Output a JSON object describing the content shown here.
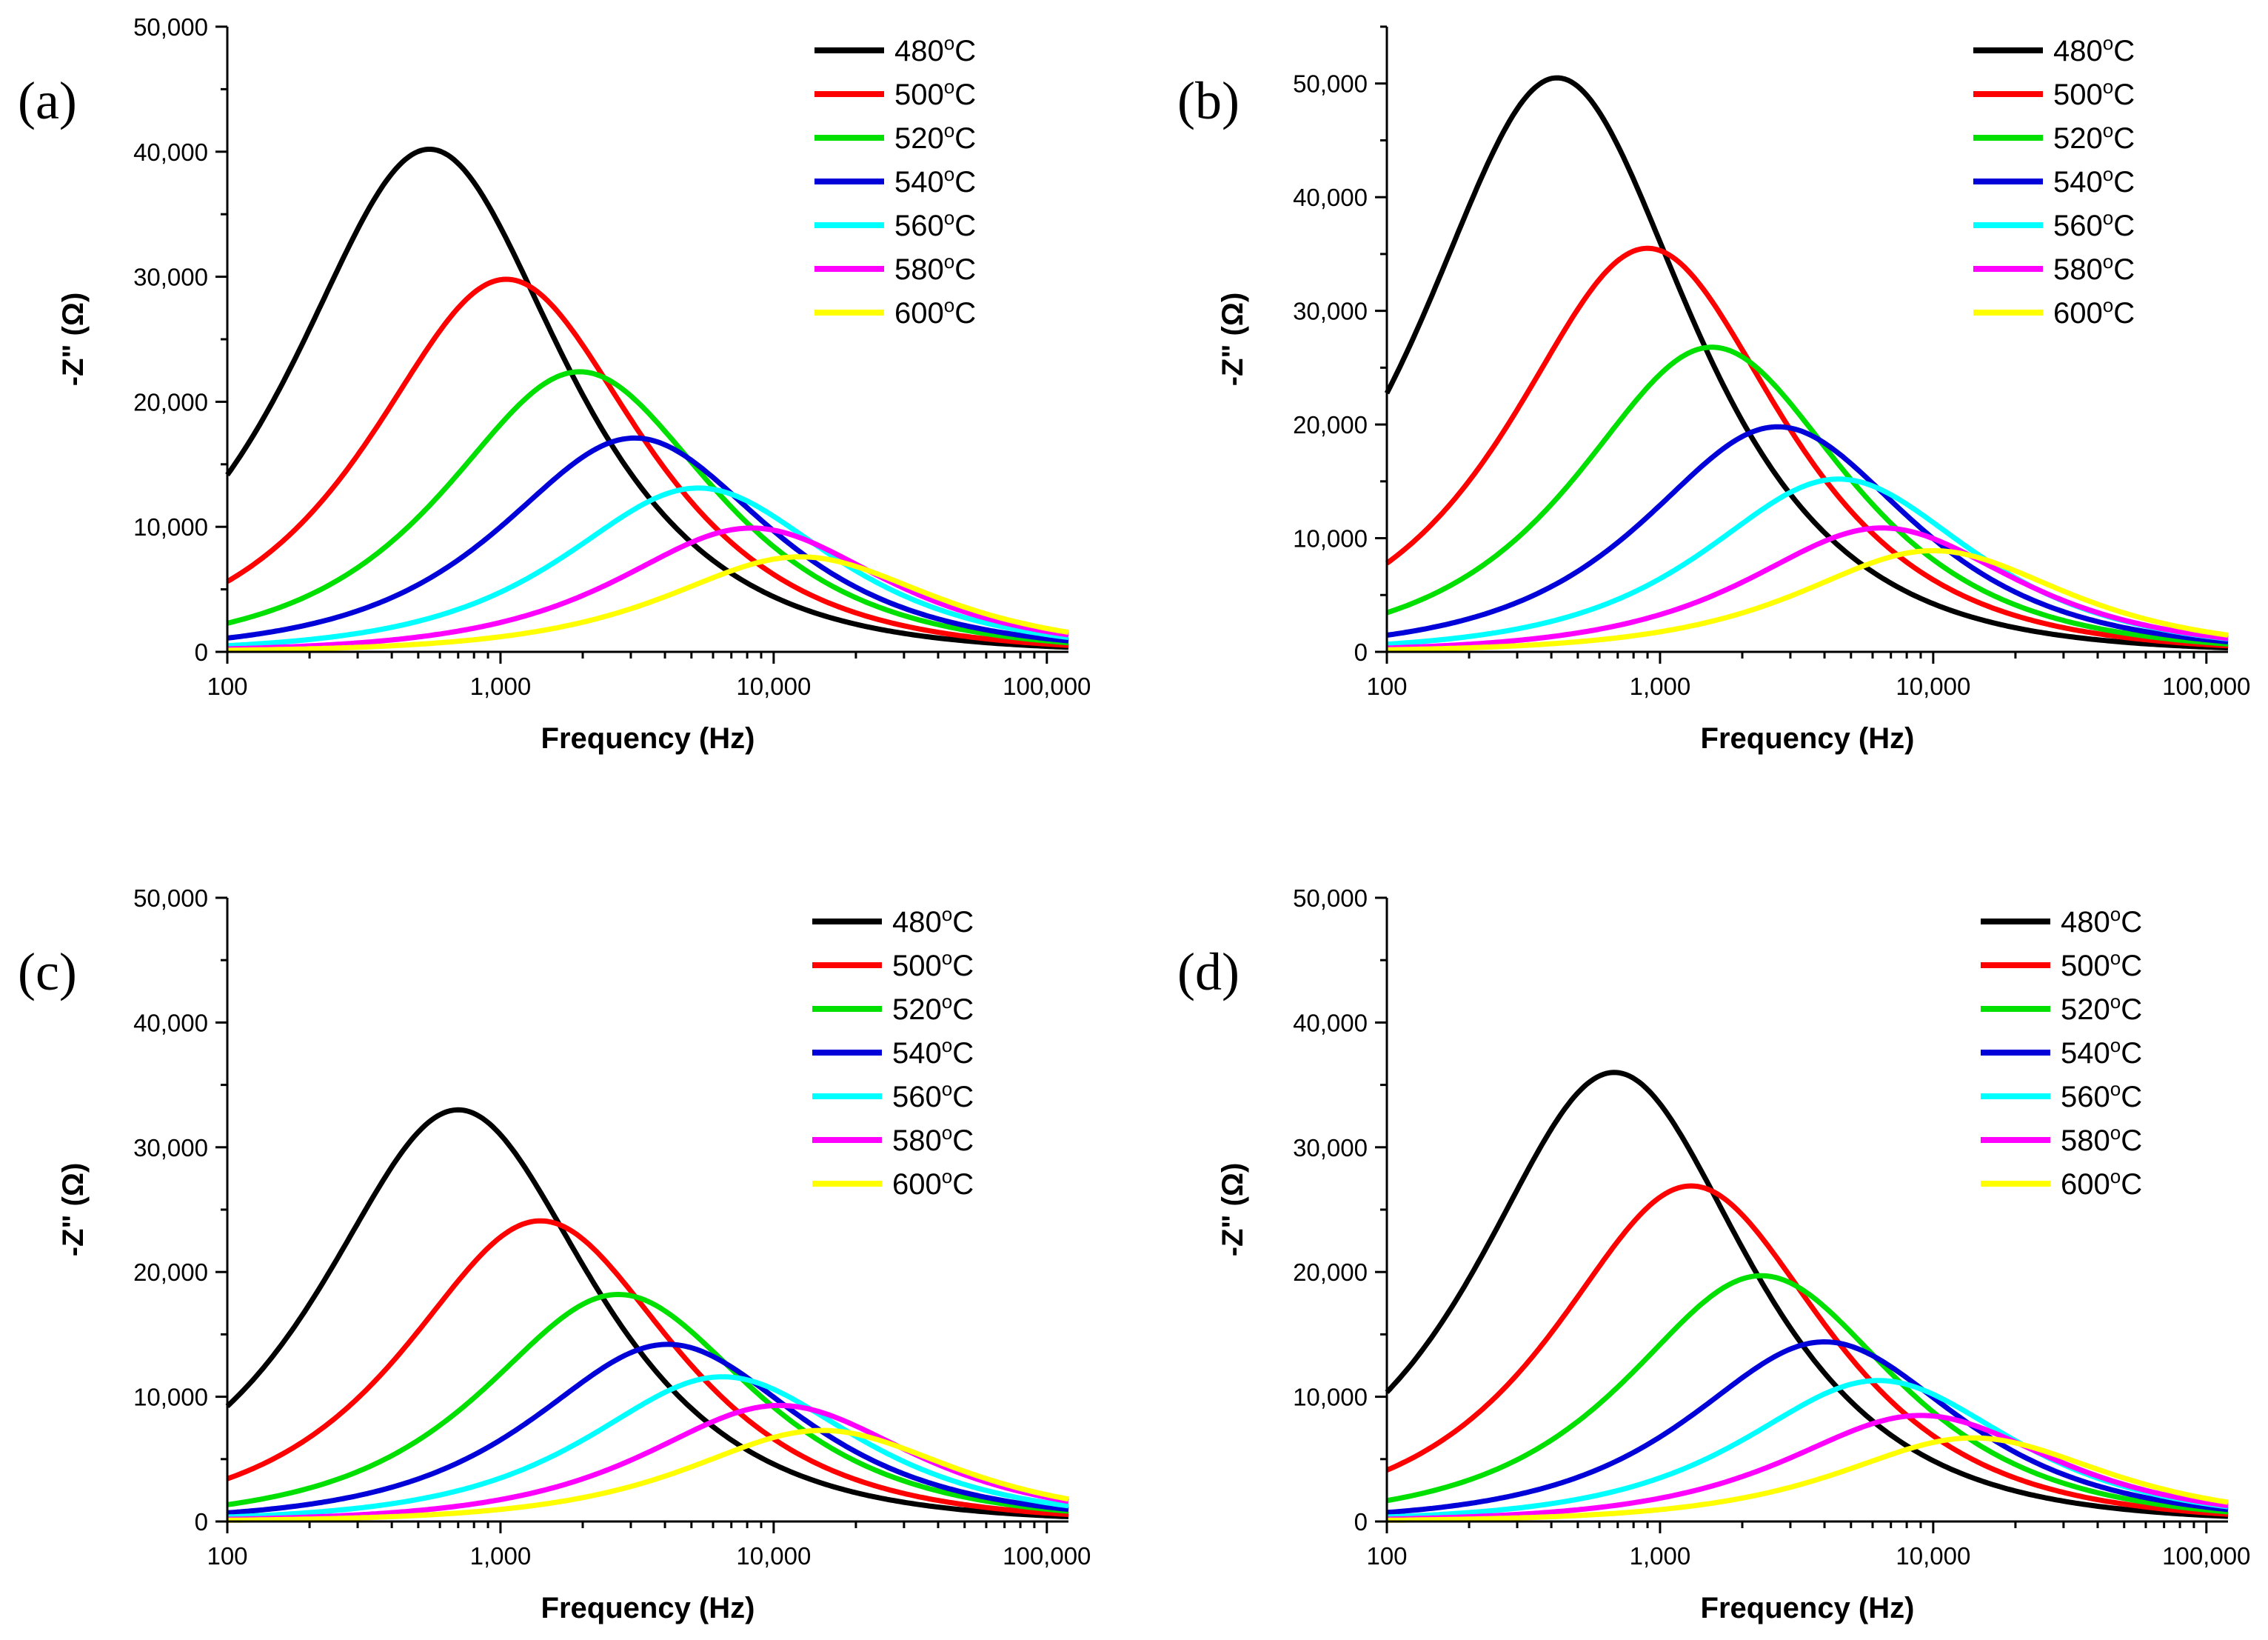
{
  "figure": {
    "legend": [
      "480°C",
      "500°C",
      "520°C",
      "540°C",
      "560°C",
      "580°C",
      "600°C"
    ],
    "colors": {
      "480°C": "#000000",
      "500°C": "#ff0000",
      "520°C": "#00e000",
      "540°C": "#0000d8",
      "560°C": "#00ffff",
      "580°C": "#ff00ff",
      "600°C": "#ffff00"
    }
  },
  "chart_data": [
    {
      "panel_label": "(a)",
      "type": "line",
      "xscale": "log",
      "xlabel": "Frequency (Hz)",
      "ylabel": "-Z\" (Ω)",
      "xlim": [
        100,
        120000
      ],
      "ylim": [
        0,
        50000
      ],
      "x_ticks": [
        100,
        1000,
        10000,
        100000
      ],
      "x_tick_labels": [
        "100",
        "1,000",
        "10,000",
        "100,000"
      ],
      "y_ticks": [
        0,
        10000,
        20000,
        30000,
        40000,
        50000
      ],
      "y_tick_labels": [
        "0",
        "10,000",
        "20,000",
        "30,000",
        "40,000",
        "50,000"
      ],
      "legend_position": "top-right",
      "series": [
        {
          "name": "480°C",
          "peak_frequency_hz": 550,
          "peak_value": 40200
        },
        {
          "name": "500°C",
          "peak_frequency_hz": 1050,
          "peak_value": 29800
        },
        {
          "name": "520°C",
          "peak_frequency_hz": 1950,
          "peak_value": 22400
        },
        {
          "name": "540°C",
          "peak_frequency_hz": 3100,
          "peak_value": 17100
        },
        {
          "name": "560°C",
          "peak_frequency_hz": 5300,
          "peak_value": 13100
        },
        {
          "name": "580°C",
          "peak_frequency_hz": 8300,
          "peak_value": 9900
        },
        {
          "name": "600°C",
          "peak_frequency_hz": 12500,
          "peak_value": 7600
        }
      ]
    },
    {
      "panel_label": "(b)",
      "type": "line",
      "xscale": "log",
      "xlabel": "Frequency (Hz)",
      "ylabel": "-Z\" (Ω)",
      "xlim": [
        100,
        120000
      ],
      "ylim": [
        0,
        55000
      ],
      "x_ticks": [
        100,
        1000,
        10000,
        100000
      ],
      "x_tick_labels": [
        "100",
        "1,000",
        "10,000",
        "100,000"
      ],
      "y_ticks": [
        0,
        10000,
        20000,
        30000,
        40000,
        50000
      ],
      "y_tick_labels": [
        "0",
        "10,000",
        "20,000",
        "30,000",
        "40,000",
        "50,000"
      ],
      "legend_position": "top-right",
      "series": [
        {
          "name": "480°C",
          "peak_frequency_hz": 420,
          "peak_value": 50500
        },
        {
          "name": "500°C",
          "peak_frequency_hz": 900,
          "peak_value": 35500
        },
        {
          "name": "520°C",
          "peak_frequency_hz": 1550,
          "peak_value": 26800
        },
        {
          "name": "540°C",
          "peak_frequency_hz": 2700,
          "peak_value": 19800
        },
        {
          "name": "560°C",
          "peak_frequency_hz": 4500,
          "peak_value": 15200
        },
        {
          "name": "580°C",
          "peak_frequency_hz": 6500,
          "peak_value": 10900
        },
        {
          "name": "600°C",
          "peak_frequency_hz": 10000,
          "peak_value": 8900
        }
      ]
    },
    {
      "panel_label": "(c)",
      "type": "line",
      "xscale": "log",
      "xlabel": "Frequency (Hz)",
      "ylabel": "-Z\" (Ω)",
      "xlim": [
        100,
        120000
      ],
      "ylim": [
        0,
        50000
      ],
      "x_ticks": [
        100,
        1000,
        10000,
        100000
      ],
      "x_tick_labels": [
        "100",
        "1,000",
        "10,000",
        "100,000"
      ],
      "y_ticks": [
        0,
        10000,
        20000,
        30000,
        40000,
        50000
      ],
      "y_tick_labels": [
        "0",
        "10,000",
        "20,000",
        "30,000",
        "40,000",
        "50,000"
      ],
      "legend_position": "top-right",
      "series": [
        {
          "name": "480°C",
          "peak_frequency_hz": 700,
          "peak_value": 33000
        },
        {
          "name": "500°C",
          "peak_frequency_hz": 1400,
          "peak_value": 24100
        },
        {
          "name": "520°C",
          "peak_frequency_hz": 2700,
          "peak_value": 18200
        },
        {
          "name": "540°C",
          "peak_frequency_hz": 4100,
          "peak_value": 14200
        },
        {
          "name": "560°C",
          "peak_frequency_hz": 6500,
          "peak_value": 11600
        },
        {
          "name": "580°C",
          "peak_frequency_hz": 10500,
          "peak_value": 9300
        },
        {
          "name": "600°C",
          "peak_frequency_hz": 15000,
          "peak_value": 7300
        }
      ]
    },
    {
      "panel_label": "(d)",
      "type": "line",
      "xscale": "log",
      "xlabel": "Frequency (Hz)",
      "ylabel": "-Z\" (Ω)",
      "xlim": [
        100,
        120000
      ],
      "ylim": [
        0,
        50000
      ],
      "x_ticks": [
        100,
        1000,
        10000,
        100000
      ],
      "x_tick_labels": [
        "100",
        "1,000",
        "10,000",
        "100,000"
      ],
      "y_ticks": [
        0,
        10000,
        20000,
        30000,
        40000,
        50000
      ],
      "y_tick_labels": [
        "0",
        "10,000",
        "20,000",
        "30,000",
        "40,000",
        "50,000"
      ],
      "legend_position": "top-right",
      "series": [
        {
          "name": "480°C",
          "peak_frequency_hz": 680,
          "peak_value": 36000
        },
        {
          "name": "500°C",
          "peak_frequency_hz": 1300,
          "peak_value": 26900
        },
        {
          "name": "520°C",
          "peak_frequency_hz": 2350,
          "peak_value": 19700
        },
        {
          "name": "540°C",
          "peak_frequency_hz": 4000,
          "peak_value": 14400
        },
        {
          "name": "560°C",
          "peak_frequency_hz": 6300,
          "peak_value": 11300
        },
        {
          "name": "580°C",
          "peak_frequency_hz": 9000,
          "peak_value": 8500
        },
        {
          "name": "600°C",
          "peak_frequency_hz": 14000,
          "peak_value": 6700
        }
      ]
    }
  ]
}
